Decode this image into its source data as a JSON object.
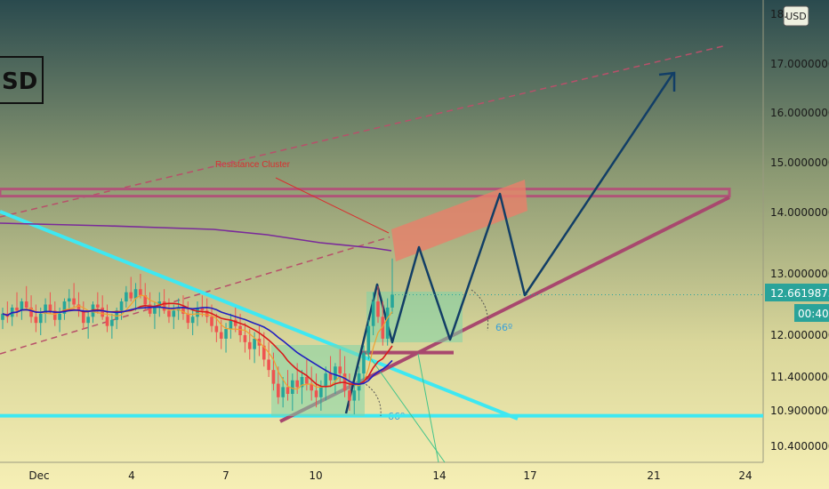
{
  "symbol_title": "SD",
  "currency_button": "USD",
  "chart_data": {
    "type": "candlestick",
    "title": "",
    "xlabel": "",
    "ylabel": "",
    "ylim": [
      10.15,
      18.6
    ],
    "x_tick_labels": [
      "Dec",
      "4",
      "7",
      "10",
      "14",
      "17",
      "21",
      "24"
    ],
    "y_tick_labels": [
      {
        "label": "18.",
        "value": 18.5
      },
      {
        "label": "17.0000000",
        "value": 17.0
      },
      {
        "label": "16.0000000",
        "value": 16.0
      },
      {
        "label": "15.0000000",
        "value": 15.0
      },
      {
        "label": "14.0000000",
        "value": 14.0
      },
      {
        "label": "13.0000000",
        "value": 13.0
      },
      {
        "label": "12.0000000",
        "value": 12.0
      },
      {
        "label": "11.4000000",
        "value": 11.4
      },
      {
        "label": "10.9000000",
        "value": 10.9
      },
      {
        "label": "10.4000000",
        "value": 10.4
      }
    ],
    "last_price": "12.6619873",
    "countdown": "00:40",
    "annotations": {
      "resistance_label": "Resistance Cluster",
      "angle_upper": "66º",
      "angle_lower": "66º"
    },
    "levels": {
      "resistance": 14.4,
      "support": 10.83,
      "small_support": 11.75
    },
    "candles": [
      [
        12.25,
        12.45,
        12.1,
        12.35
      ],
      [
        12.35,
        12.55,
        12.2,
        12.3
      ],
      [
        12.3,
        12.5,
        12.15,
        12.45
      ],
      [
        12.45,
        12.7,
        12.3,
        12.4
      ],
      [
        12.4,
        12.6,
        12.25,
        12.55
      ],
      [
        12.55,
        12.8,
        12.4,
        12.45
      ],
      [
        12.45,
        12.65,
        12.2,
        12.3
      ],
      [
        12.3,
        12.5,
        12.05,
        12.2
      ],
      [
        12.2,
        12.45,
        12.0,
        12.35
      ],
      [
        12.35,
        12.6,
        12.2,
        12.5
      ],
      [
        12.5,
        12.7,
        12.35,
        12.4
      ],
      [
        12.4,
        12.55,
        12.15,
        12.25
      ],
      [
        12.25,
        12.45,
        12.05,
        12.35
      ],
      [
        12.35,
        12.6,
        12.25,
        12.55
      ],
      [
        12.55,
        12.75,
        12.4,
        12.6
      ],
      [
        12.6,
        12.85,
        12.45,
        12.5
      ],
      [
        12.5,
        12.7,
        12.3,
        12.4
      ],
      [
        12.4,
        12.55,
        12.1,
        12.2
      ],
      [
        12.2,
        12.4,
        11.95,
        12.3
      ],
      [
        12.3,
        12.55,
        12.2,
        12.5
      ],
      [
        12.5,
        12.7,
        12.35,
        12.45
      ],
      [
        12.45,
        12.65,
        12.25,
        12.3
      ],
      [
        12.3,
        12.5,
        12.05,
        12.15
      ],
      [
        12.15,
        12.35,
        11.95,
        12.25
      ],
      [
        12.25,
        12.45,
        12.1,
        12.4
      ],
      [
        12.4,
        12.6,
        12.25,
        12.55
      ],
      [
        12.55,
        12.8,
        12.45,
        12.7
      ],
      [
        12.7,
        12.95,
        12.55,
        12.6
      ],
      [
        12.6,
        12.85,
        12.4,
        12.75
      ],
      [
        12.75,
        13.0,
        12.6,
        12.65
      ],
      [
        12.65,
        12.85,
        12.4,
        12.5
      ],
      [
        12.5,
        12.7,
        12.3,
        12.35
      ],
      [
        12.35,
        12.55,
        12.1,
        12.45
      ],
      [
        12.45,
        12.7,
        12.3,
        12.55
      ],
      [
        12.55,
        12.75,
        12.35,
        12.4
      ],
      [
        12.4,
        12.6,
        12.2,
        12.3
      ],
      [
        12.3,
        12.5,
        12.1,
        12.4
      ],
      [
        12.4,
        12.6,
        12.25,
        12.45
      ],
      [
        12.45,
        12.65,
        12.25,
        12.35
      ],
      [
        12.35,
        12.55,
        12.1,
        12.2
      ],
      [
        12.2,
        12.4,
        12.0,
        12.3
      ],
      [
        12.3,
        12.55,
        12.15,
        12.45
      ],
      [
        12.45,
        12.65,
        12.3,
        12.4
      ],
      [
        12.4,
        12.6,
        12.2,
        12.3
      ],
      [
        12.3,
        12.5,
        12.05,
        12.15
      ],
      [
        12.15,
        12.35,
        11.9,
        12.05
      ],
      [
        12.05,
        12.25,
        11.8,
        11.95
      ],
      [
        11.95,
        12.2,
        11.75,
        12.1
      ],
      [
        12.1,
        12.35,
        11.95,
        12.25
      ],
      [
        12.25,
        12.45,
        12.05,
        12.15
      ],
      [
        12.15,
        12.35,
        11.9,
        12.0
      ],
      [
        12.0,
        12.2,
        11.75,
        11.9
      ],
      [
        11.9,
        12.1,
        11.65,
        11.8
      ],
      [
        11.8,
        12.05,
        11.6,
        11.95
      ],
      [
        11.95,
        12.15,
        11.7,
        11.85
      ],
      [
        11.85,
        12.05,
        11.55,
        11.65
      ],
      [
        11.65,
        11.9,
        11.4,
        11.5
      ],
      [
        11.5,
        11.75,
        11.2,
        11.3
      ],
      [
        11.3,
        11.55,
        11.0,
        11.1
      ],
      [
        11.1,
        11.4,
        10.95,
        11.25
      ],
      [
        11.25,
        11.5,
        11.05,
        11.15
      ],
      [
        11.15,
        11.45,
        10.9,
        11.35
      ],
      [
        11.35,
        11.6,
        11.15,
        11.25
      ],
      [
        11.25,
        11.5,
        11.0,
        11.4
      ],
      [
        11.4,
        11.65,
        11.2,
        11.3
      ],
      [
        11.3,
        11.55,
        11.05,
        11.2
      ],
      [
        11.2,
        11.45,
        10.95,
        11.1
      ],
      [
        11.1,
        11.35,
        10.9,
        11.25
      ],
      [
        11.25,
        11.55,
        11.05,
        11.45
      ],
      [
        11.45,
        11.7,
        11.25,
        11.35
      ],
      [
        11.35,
        11.6,
        11.15,
        11.55
      ],
      [
        11.55,
        11.8,
        11.3,
        11.45
      ],
      [
        11.45,
        11.7,
        11.1,
        11.2
      ],
      [
        11.2,
        11.45,
        10.9,
        11.05
      ],
      [
        11.05,
        11.3,
        10.85,
        11.2
      ],
      [
        11.2,
        11.55,
        11.05,
        11.45
      ],
      [
        11.45,
        11.85,
        11.35,
        11.75
      ],
      [
        11.75,
        12.25,
        11.65,
        12.15
      ],
      [
        12.15,
        12.7,
        12.0,
        12.55
      ],
      [
        12.55,
        12.8,
        12.2,
        12.3
      ],
      [
        12.3,
        12.55,
        11.85,
        11.95
      ],
      [
        11.95,
        12.6,
        11.85,
        12.45
      ],
      [
        12.45,
        13.25,
        12.35,
        12.66
      ]
    ]
  }
}
